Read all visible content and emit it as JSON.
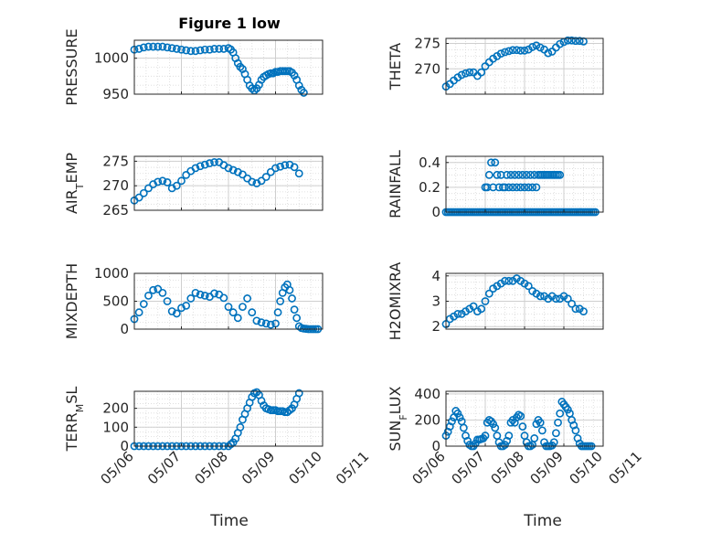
{
  "figure": {
    "title": "Figure 1 low"
  },
  "style": {
    "marker_color": "#0072BD",
    "grid_color": "#d9d9d9",
    "axis_color": "#262626"
  },
  "chart_data": [
    {
      "type": "scatter",
      "panel": "pressure",
      "ylabel": "PRESSURE",
      "title": "Figure 1 low",
      "xlim": [
        0,
        4
      ],
      "ylim": [
        950,
        1025
      ],
      "yticks": [
        950,
        1000
      ],
      "ytick_labels": [
        "950",
        "1000"
      ],
      "grid": true,
      "x": [
        0,
        0.1,
        0.2,
        0.3,
        0.4,
        0.5,
        0.6,
        0.7,
        0.8,
        0.9,
        1.0,
        1.1,
        1.2,
        1.3,
        1.4,
        1.5,
        1.6,
        1.7,
        1.8,
        1.9,
        2.0,
        2.05,
        2.1,
        2.15,
        2.2,
        2.25,
        2.3,
        2.35,
        2.4,
        2.45,
        2.5,
        2.55,
        2.6,
        2.65,
        2.7,
        2.75,
        2.8,
        2.85,
        2.9,
        2.95,
        3.0,
        3.05,
        3.1,
        3.15,
        3.2,
        3.25,
        3.3,
        3.35,
        3.4,
        3.45,
        3.5,
        3.55,
        3.6,
        3.65,
        3.7,
        3.75,
        3.8,
        3.85,
        3.9
      ],
      "y": [
        1012,
        1013,
        1015,
        1016,
        1016,
        1016,
        1016,
        1015,
        1014,
        1013,
        1012,
        1011,
        1010,
        1010,
        1011,
        1012,
        1012,
        1013,
        1013,
        1013,
        1014,
        1012,
        1008,
        1000,
        993,
        988,
        985,
        978,
        970,
        962,
        958,
        955,
        958,
        963,
        970,
        974,
        976,
        978,
        979,
        979,
        981,
        981,
        982,
        982,
        982,
        982,
        982,
        980,
        976,
        970,
        962,
        956,
        952,
        null,
        null,
        null,
        null,
        null,
        null
      ]
    },
    {
      "type": "scatter",
      "panel": "theta",
      "ylabel": "THETA",
      "xlim": [
        0,
        4
      ],
      "ylim": [
        265,
        276
      ],
      "yticks": [
        270,
        275
      ],
      "ytick_labels": [
        "270",
        "275"
      ],
      "grid": true,
      "x": [
        0,
        0.1,
        0.2,
        0.3,
        0.4,
        0.5,
        0.6,
        0.7,
        0.8,
        0.9,
        1.0,
        1.1,
        1.2,
        1.3,
        1.4,
        1.5,
        1.6,
        1.7,
        1.8,
        1.9,
        2.0,
        2.1,
        2.2,
        2.3,
        2.4,
        2.5,
        2.6,
        2.7,
        2.8,
        2.9,
        3.0,
        3.1,
        3.2,
        3.3,
        3.4,
        3.5
      ],
      "y": [
        266.5,
        267.0,
        267.7,
        268.3,
        268.8,
        269.1,
        269.3,
        269.3,
        268.6,
        269.3,
        270.5,
        271.3,
        272.0,
        272.5,
        273.0,
        273.3,
        273.5,
        273.7,
        273.7,
        273.6,
        273.6,
        273.8,
        274.3,
        274.6,
        274.2,
        273.8,
        273.1,
        273.4,
        274.2,
        274.9,
        275.3,
        275.6,
        275.6,
        275.5,
        275.5,
        275.4
      ]
    },
    {
      "type": "scatter",
      "panel": "air_temp",
      "ylabel": "AIR_TEMP",
      "ylabel_display": [
        "AIR",
        "T",
        "EMP"
      ],
      "xlim": [
        0,
        4
      ],
      "ylim": [
        265,
        276
      ],
      "yticks": [
        265,
        270,
        275
      ],
      "ytick_labels": [
        "265",
        "270",
        "275"
      ],
      "grid": true,
      "x": [
        0,
        0.1,
        0.2,
        0.3,
        0.4,
        0.5,
        0.6,
        0.7,
        0.8,
        0.9,
        1.0,
        1.1,
        1.2,
        1.3,
        1.4,
        1.5,
        1.6,
        1.7,
        1.8,
        1.9,
        2.0,
        2.1,
        2.2,
        2.3,
        2.4,
        2.5,
        2.6,
        2.7,
        2.8,
        2.9,
        3.0,
        3.1,
        3.2,
        3.3,
        3.4,
        3.5
      ],
      "y": [
        267.0,
        267.6,
        268.5,
        269.5,
        270.3,
        270.8,
        271.0,
        270.7,
        269.5,
        270.0,
        271.0,
        272.2,
        273.0,
        273.6,
        274.0,
        274.3,
        274.6,
        274.8,
        274.8,
        274.2,
        273.6,
        273.2,
        272.8,
        272.3,
        271.5,
        270.8,
        270.5,
        271.0,
        271.8,
        272.8,
        273.6,
        273.9,
        274.2,
        274.3,
        273.8,
        272.5
      ]
    },
    {
      "type": "scatter",
      "panel": "rainfall",
      "ylabel": "RAINFALL",
      "xlim": [
        0,
        4
      ],
      "ylim": [
        0,
        0.45
      ],
      "yticks": [
        0,
        0.2,
        0.4
      ],
      "ytick_labels": [
        "0",
        "0.2",
        "0.4"
      ],
      "grid": true,
      "x": [
        0,
        0.05,
        0.1,
        0.15,
        0.2,
        0.25,
        0.3,
        0.35,
        0.4,
        0.45,
        0.5,
        0.55,
        0.6,
        0.65,
        0.7,
        0.75,
        0.8,
        0.85,
        0.9,
        0.95,
        1.0,
        1.05,
        1.1,
        1.15,
        1.2,
        1.25,
        1.3,
        1.35,
        1.4,
        1.45,
        1.5,
        1.55,
        1.6,
        1.65,
        1.7,
        1.75,
        1.8,
        1.85,
        1.9,
        1.95,
        2.0,
        2.05,
        2.1,
        2.15,
        2.2,
        2.25,
        2.3,
        2.35,
        2.4,
        2.45,
        2.5,
        2.55,
        2.6,
        2.65,
        2.7,
        2.75,
        2.8,
        2.85,
        2.9,
        2.95,
        3.0,
        3.05,
        3.1,
        3.15,
        3.2,
        3.25,
        3.3,
        3.35,
        3.4,
        3.45,
        3.5,
        3.55,
        3.6,
        3.65,
        3.7,
        3.75,
        3.8
      ],
      "y": [
        0,
        0,
        0,
        0,
        0,
        0,
        0,
        0,
        0,
        0,
        0,
        0,
        0,
        0,
        0,
        0,
        0,
        0,
        0,
        0,
        0,
        0,
        0,
        0,
        0,
        0,
        0,
        0,
        0,
        0,
        0,
        0,
        0,
        0,
        0,
        0,
        0,
        0,
        0,
        0,
        0,
        0,
        0,
        0,
        0,
        0,
        0,
        0,
        0,
        0,
        0,
        0,
        0,
        0,
        0,
        0,
        0,
        0,
        0,
        0,
        0,
        0,
        0,
        0,
        0,
        0,
        0,
        0,
        0,
        0,
        0,
        0,
        0,
        0,
        0,
        0,
        0
      ],
      "extra_points": {
        "x": [
          1.0,
          1.05,
          1.1,
          1.15,
          1.2,
          1.25,
          1.3,
          1.35,
          1.4,
          1.45,
          1.5,
          1.55,
          1.6,
          1.65,
          1.7,
          1.75,
          1.8,
          1.85,
          1.9,
          1.95,
          2.0,
          2.05,
          2.1,
          2.15,
          2.2,
          2.25,
          2.3,
          2.35,
          2.4,
          2.45,
          2.5,
          2.55,
          2.6,
          2.65,
          2.7,
          2.75,
          2.8,
          2.85,
          2.9
        ],
        "y": [
          0.2,
          0.2,
          0.3,
          0.4,
          0.2,
          0.4,
          0.3,
          0.2,
          0.3,
          0.2,
          0.2,
          0.3,
          0.2,
          0.3,
          0.2,
          0.3,
          0.2,
          0.3,
          0.2,
          0.3,
          0.2,
          0.3,
          0.2,
          0.3,
          0.2,
          0.3,
          0.2,
          0.3,
          0.3,
          0.3,
          0.3,
          0.3,
          0.3,
          0.3,
          0.3,
          0.3,
          0.3,
          0.3,
          0.3
        ]
      }
    },
    {
      "type": "scatter",
      "panel": "mixdepth",
      "ylabel": "MIXDEPTH",
      "xlim": [
        0,
        4
      ],
      "ylim": [
        0,
        1000
      ],
      "yticks": [
        0,
        500,
        1000
      ],
      "ytick_labels": [
        "0",
        "500",
        "1000"
      ],
      "grid": true,
      "x": [
        0,
        0.1,
        0.2,
        0.3,
        0.4,
        0.5,
        0.6,
        0.7,
        0.8,
        0.9,
        1.0,
        1.1,
        1.2,
        1.3,
        1.4,
        1.5,
        1.6,
        1.7,
        1.8,
        1.9,
        2.0,
        2.1,
        2.2,
        2.3,
        2.4,
        2.5,
        2.6,
        2.7,
        2.8,
        2.9,
        3.0,
        3.05,
        3.1,
        3.15,
        3.2,
        3.25,
        3.3,
        3.35,
        3.4,
        3.45,
        3.5,
        3.55,
        3.6,
        3.65,
        3.7,
        3.75,
        3.8,
        3.85,
        3.9
      ],
      "y": [
        180,
        300,
        450,
        600,
        700,
        720,
        650,
        500,
        320,
        280,
        380,
        420,
        550,
        650,
        620,
        600,
        580,
        640,
        620,
        560,
        400,
        300,
        200,
        400,
        550,
        300,
        150,
        120,
        100,
        80,
        100,
        300,
        500,
        650,
        750,
        800,
        700,
        550,
        350,
        200,
        50,
        20,
        10,
        5,
        0,
        0,
        0,
        0,
        0
      ]
    },
    {
      "type": "scatter",
      "panel": "h2omixra",
      "ylabel": "H2OMIXRA",
      "xlim": [
        0,
        4
      ],
      "ylim": [
        1.9,
        4.1
      ],
      "yticks": [
        2,
        3,
        4
      ],
      "ytick_labels": [
        "2",
        "3",
        "4"
      ],
      "grid": true,
      "x": [
        0,
        0.1,
        0.2,
        0.3,
        0.4,
        0.5,
        0.6,
        0.7,
        0.8,
        0.9,
        1.0,
        1.1,
        1.2,
        1.3,
        1.4,
        1.5,
        1.6,
        1.7,
        1.8,
        1.9,
        2.0,
        2.1,
        2.2,
        2.3,
        2.4,
        2.5,
        2.6,
        2.7,
        2.8,
        2.9,
        3.0,
        3.1,
        3.2,
        3.3,
        3.4,
        3.5
      ],
      "y": [
        2.1,
        2.3,
        2.4,
        2.5,
        2.5,
        2.6,
        2.7,
        2.8,
        2.6,
        2.7,
        3.0,
        3.3,
        3.5,
        3.6,
        3.7,
        3.8,
        3.8,
        3.8,
        3.9,
        3.8,
        3.7,
        3.6,
        3.4,
        3.3,
        3.2,
        3.2,
        3.1,
        3.2,
        3.1,
        3.1,
        3.2,
        3.1,
        2.9,
        2.7,
        2.7,
        2.6
      ]
    },
    {
      "type": "scatter",
      "panel": "terr_msl",
      "ylabel": "TERR_MSL",
      "ylabel_display": [
        "TERR",
        "M",
        "SL"
      ],
      "xlim": [
        0,
        4
      ],
      "ylim": [
        0,
        290
      ],
      "yticks": [
        0,
        100,
        200
      ],
      "ytick_labels": [
        "0",
        "100",
        "200"
      ],
      "grid": true,
      "x": [
        0,
        0.1,
        0.2,
        0.3,
        0.4,
        0.5,
        0.6,
        0.7,
        0.8,
        0.9,
        1.0,
        1.1,
        1.2,
        1.3,
        1.4,
        1.5,
        1.6,
        1.7,
        1.8,
        1.9,
        2.0,
        2.05,
        2.1,
        2.15,
        2.2,
        2.25,
        2.3,
        2.35,
        2.4,
        2.45,
        2.5,
        2.55,
        2.6,
        2.65,
        2.7,
        2.75,
        2.8,
        2.85,
        2.9,
        2.95,
        3.0,
        3.05,
        3.1,
        3.15,
        3.2,
        3.25,
        3.3,
        3.35,
        3.4,
        3.45,
        3.5
      ],
      "y": [
        0,
        0,
        0,
        0,
        0,
        0,
        0,
        0,
        0,
        0,
        0,
        0,
        0,
        0,
        0,
        0,
        0,
        0,
        0,
        0,
        0,
        10,
        20,
        40,
        70,
        100,
        140,
        170,
        200,
        230,
        260,
        280,
        285,
        270,
        240,
        215,
        200,
        195,
        190,
        190,
        190,
        185,
        185,
        185,
        180,
        180,
        190,
        200,
        220,
        250,
        280
      ]
    },
    {
      "type": "scatter",
      "panel": "sun_flux",
      "ylabel": "SUN_FLUX",
      "ylabel_display": [
        "SUN",
        "F",
        "LUX"
      ],
      "xlim": [
        0,
        4
      ],
      "ylim": [
        0,
        420
      ],
      "yticks": [
        0,
        200,
        400
      ],
      "ytick_labels": [
        "0",
        "200",
        "400"
      ],
      "grid": true,
      "x": [
        0,
        0.05,
        0.1,
        0.15,
        0.2,
        0.25,
        0.3,
        0.35,
        0.4,
        0.45,
        0.5,
        0.55,
        0.6,
        0.65,
        0.7,
        0.75,
        0.8,
        0.85,
        0.9,
        0.95,
        1.0,
        1.05,
        1.1,
        1.15,
        1.2,
        1.25,
        1.3,
        1.35,
        1.4,
        1.45,
        1.5,
        1.55,
        1.6,
        1.65,
        1.7,
        1.75,
        1.8,
        1.85,
        1.9,
        1.95,
        2.0,
        2.05,
        2.1,
        2.15,
        2.2,
        2.25,
        2.3,
        2.35,
        2.4,
        2.45,
        2.5,
        2.55,
        2.6,
        2.65,
        2.7,
        2.75,
        2.8,
        2.85,
        2.9,
        2.95,
        3.0,
        3.05,
        3.1,
        3.15,
        3.2,
        3.25,
        3.3,
        3.35,
        3.4,
        3.45,
        3.5,
        3.55,
        3.6,
        3.65,
        3.7
      ],
      "y": [
        80,
        110,
        150,
        190,
        220,
        270,
        250,
        220,
        190,
        140,
        80,
        40,
        10,
        0,
        0,
        20,
        50,
        50,
        55,
        60,
        80,
        180,
        200,
        190,
        170,
        140,
        80,
        30,
        0,
        0,
        10,
        40,
        80,
        180,
        200,
        180,
        220,
        240,
        230,
        150,
        80,
        30,
        0,
        0,
        10,
        60,
        170,
        200,
        180,
        120,
        30,
        0,
        0,
        0,
        5,
        30,
        100,
        180,
        250,
        340,
        320,
        300,
        280,
        250,
        200,
        160,
        120,
        60,
        20,
        0,
        0,
        0,
        0,
        0,
        0
      ]
    }
  ],
  "x_axis": {
    "ticks": [
      0,
      1,
      2,
      3,
      4,
      5
    ],
    "tick_labels": [
      "05/06",
      "05/07",
      "05/08",
      "05/09",
      "05/10",
      "05/11"
    ],
    "xlabel": "Time"
  }
}
